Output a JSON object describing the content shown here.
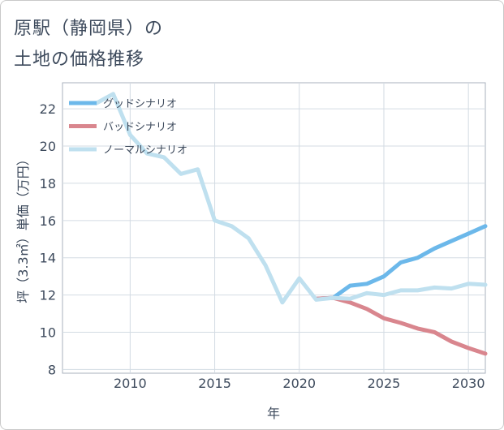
{
  "title": {
    "line1": "原駅（静岡県）の",
    "line2": "土地の価格推移"
  },
  "chart_data": {
    "type": "line",
    "xlabel": "年",
    "ylabel": "坪（3.3㎡）単価（万円）",
    "xlim": [
      2006,
      2031
    ],
    "ylim": [
      7.8,
      23.4
    ],
    "x_ticks": [
      2010,
      2015,
      2020,
      2025,
      2030
    ],
    "y_ticks": [
      8,
      10,
      12,
      14,
      16,
      18,
      20,
      22
    ],
    "grid": true,
    "legend_position": "top-left",
    "series": [
      {
        "name": "グッドシナリオ",
        "color": "#6cb8ea",
        "x": [
          2021,
          2022,
          2023,
          2024,
          2025,
          2026,
          2027,
          2028,
          2029,
          2030,
          2031
        ],
        "values": [
          11.8,
          11.85,
          12.5,
          12.6,
          13.0,
          13.75,
          14.0,
          14.5,
          14.9,
          15.3,
          15.7
        ]
      },
      {
        "name": "バッドシナリオ",
        "color": "#d9868e",
        "x": [
          2021,
          2022,
          2023,
          2024,
          2025,
          2026,
          2027,
          2028,
          2029,
          2030,
          2031
        ],
        "values": [
          11.8,
          11.85,
          11.6,
          11.25,
          10.75,
          10.5,
          10.2,
          10.0,
          9.5,
          9.15,
          8.85
        ]
      },
      {
        "name": "ノーマルシナリオ",
        "color": "#bfe0ef",
        "x": [
          2008,
          2009,
          2010,
          2011,
          2012,
          2013,
          2014,
          2015,
          2016,
          2017,
          2018,
          2019,
          2020,
          2021,
          2022,
          2023,
          2024,
          2025,
          2026,
          2027,
          2028,
          2029,
          2030,
          2031
        ],
        "values": [
          22.3,
          22.8,
          20.6,
          19.6,
          19.4,
          18.5,
          18.75,
          16.0,
          15.7,
          15.05,
          13.6,
          11.6,
          12.9,
          11.75,
          11.85,
          11.8,
          12.1,
          12.0,
          12.25,
          12.25,
          12.4,
          12.35,
          12.6,
          12.55
        ]
      }
    ]
  }
}
